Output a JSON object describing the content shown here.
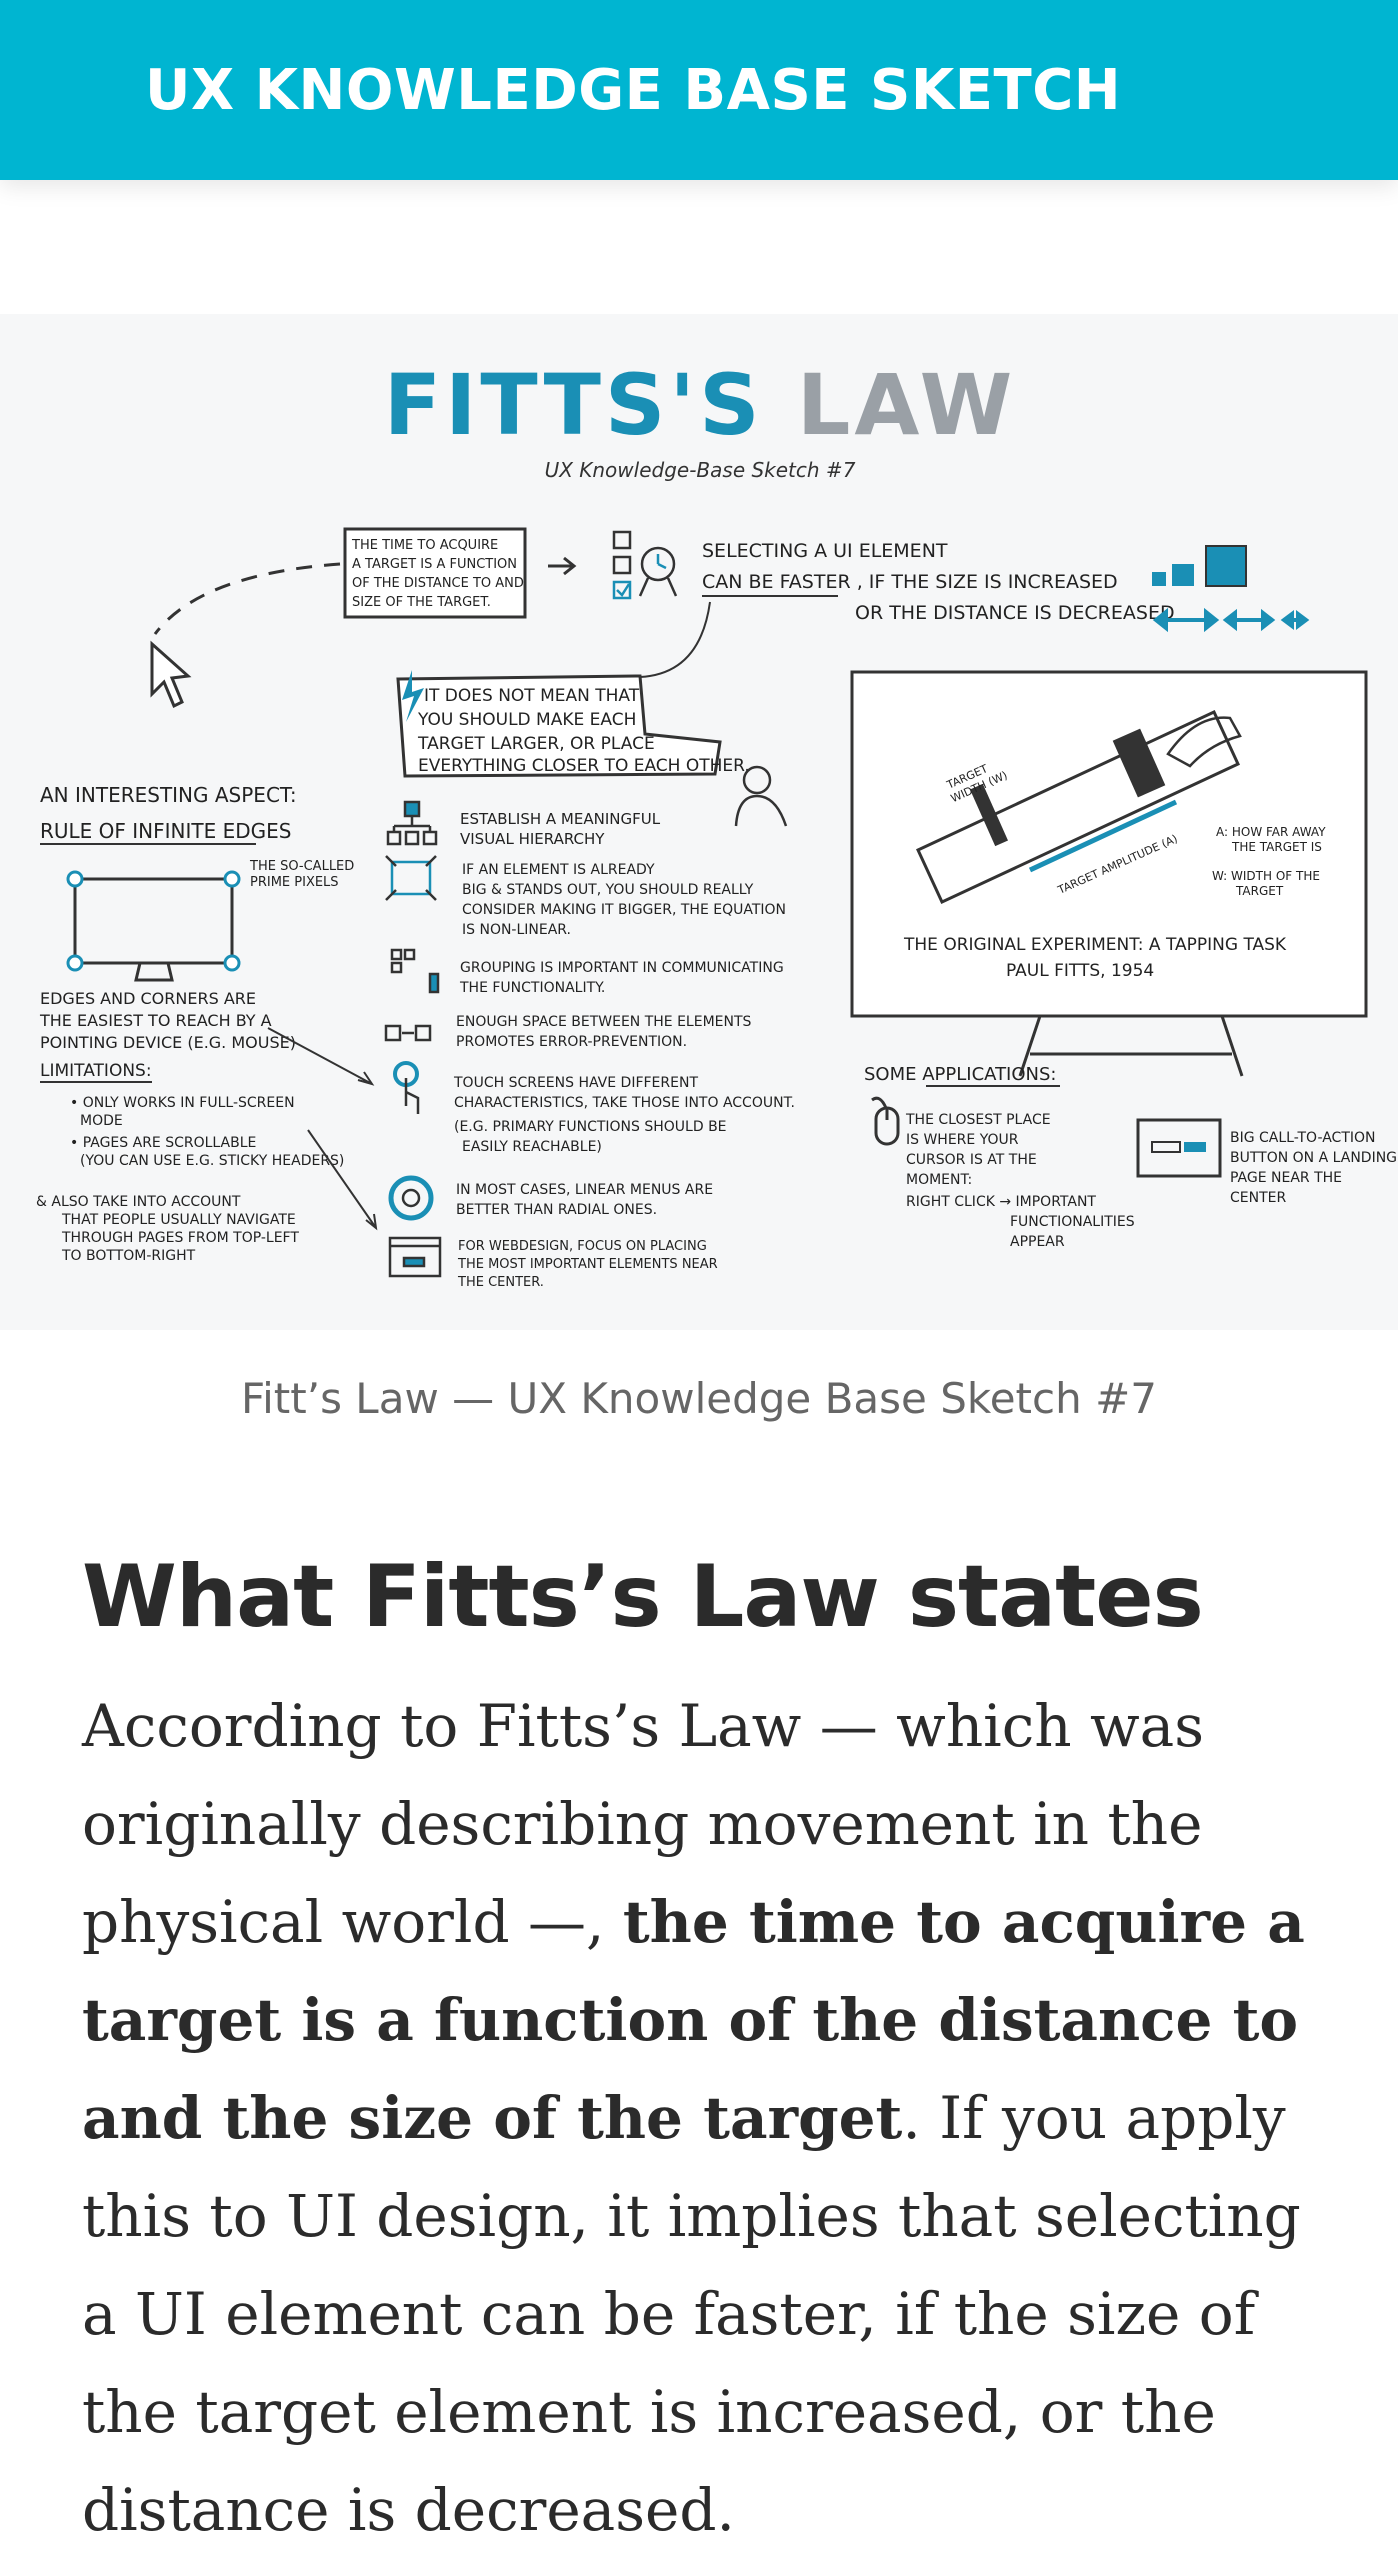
{
  "site": {
    "title": "UX KNOWLEDGE BASE SKETCH"
  },
  "sketch": {
    "title_dark": "FITTS",
    "title_accent": "'S",
    "title_rest": " LAW",
    "subtitle": "UX Knowledge-Base Sketch #7",
    "definition_box": [
      "THE TIME TO ACQUIRE",
      "A TARGET IS A FUNCTION",
      "OF THE DISTANCE TO AND",
      "SIZE OF THE TARGET."
    ],
    "selecting": [
      "SELECTING A UI ELEMENT",
      "CAN BE FASTER , IF THE SIZE IS INCREASED",
      "OR THE DISTANCE IS DECREASED"
    ],
    "callout": [
      "IT DOES NOT MEAN THAT",
      "YOU SHOULD MAKE EACH",
      "TARGET LARGER, OR PLACE",
      "EVERYTHING CLOSER TO EACH OTHER."
    ],
    "aspect_title": "AN INTERESTING ASPECT:",
    "aspect_subtitle": "RULE OF INFINITE EDGES",
    "prime_pixels": [
      "THE SO-CALLED",
      "PRIME PIXELS"
    ],
    "edges_text": [
      "EDGES AND CORNERS ARE",
      "THE EASIEST TO REACH BY A",
      "POINTING DEVICE (E.G. MOUSE)"
    ],
    "limitations_title": "LIMITATIONS:",
    "limitations": [
      "• ONLY WORKS IN FULL-SCREEN",
      "  MODE",
      "• PAGES ARE SCROLLABLE",
      "  (YOU CAN USE E.G. STICKY HEADERS)"
    ],
    "also_note": [
      "& ALSO TAKE INTO ACCOUNT",
      "THAT PEOPLE USUALLY NAVIGATE",
      "THROUGH PAGES FROM TOP-LEFT",
      "TO BOTTOM-RIGHT"
    ],
    "tips": [
      [
        "ESTABLISH A MEANINGFUL",
        "VISUAL HIERARCHY"
      ],
      [
        "IF AN ELEMENT IS ALREADY",
        "BIG & STANDS OUT, YOU SHOULD REALLY",
        "CONSIDER MAKING IT BIGGER, THE EQUATION",
        "IS NON-LINEAR."
      ],
      [
        "GROUPING IS IMPORTANT IN COMMUNICATING",
        "THE FUNCTIONALITY."
      ],
      [
        "ENOUGH SPACE BETWEEN THE ELEMENTS",
        "PROMOTES ERROR-PREVENTION."
      ],
      [
        "TOUCH SCREENS HAVE DIFFERENT",
        "CHARACTERISTICS, TAKE THOSE INTO ACCOUNT.",
        "(E.G. PRIMARY FUNCTIONS SHOULD BE",
        "EASILY REACHABLE)"
      ],
      [
        "IN MOST CASES, LINEAR MENUS ARE",
        "BETTER THAN RADIAL ONES."
      ],
      [
        "FOR WEBDESIGN, FOCUS ON PLACING",
        "THE MOST IMPORTANT ELEMENTS NEAR",
        "THE CENTER."
      ]
    ],
    "target_width": [
      "TARGET",
      "WIDTH (W)"
    ],
    "target_amplitude": "TARGET AMPLITUDE (A)",
    "legend_a": [
      "A: HOW FAR AWAY",
      "THE TARGET IS"
    ],
    "legend_w": [
      "W: WIDTH OF THE",
      "TARGET"
    ],
    "experiment": [
      "THE ORIGINAL EXPERIMENT: A TAPPING TASK",
      "PAUL FITTS, 1954"
    ],
    "applications_title": "SOME APPLICATIONS:",
    "closest_place": [
      "THE CLOSEST PLACE",
      "IS WHERE YOUR",
      "CURSOR IS AT THE",
      "MOMENT:",
      "RIGHT CLICK → IMPORTANT",
      "FUNCTIONALITIES",
      "APPEAR"
    ],
    "cta": [
      "BIG CALL-TO-ACTION",
      "BUTTON ON A LANDING",
      "PAGE NEAR THE",
      "CENTER"
    ]
  },
  "figure": {
    "caption": "Fitt’s Law — UX Knowledge Base Sketch #7"
  },
  "article": {
    "heading": "What Fitts’s Law states",
    "p1_start": "According to Fitts’s Law — which was originally describing movement in the physical world —, ",
    "p1_bold": "the time to acquire a target is a function of the distance to and the size of the target",
    "p1_end": ". If you apply this to UI design, it implies that selecting a UI element can be faster, if the size of the target element is increased, or the distance is decreased."
  },
  "colors": {
    "brand": "#00b5d1",
    "accent": "#1a8fb5",
    "ink": "#2b2b2b"
  }
}
